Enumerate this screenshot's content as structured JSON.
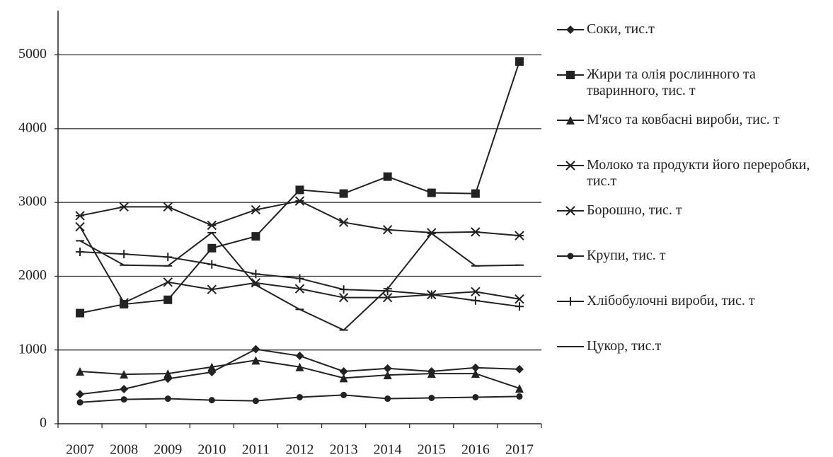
{
  "chart_data": {
    "type": "line",
    "categories": [
      "2007",
      "2008",
      "2009",
      "2010",
      "2011",
      "2012",
      "2013",
      "2014",
      "2015",
      "2016",
      "2017"
    ],
    "series": [
      {
        "name": "Соки, тис.т",
        "color": "#222222",
        "marker": "diamond",
        "values": [
          400,
          470,
          610,
          700,
          1010,
          920,
          710,
          750,
          710,
          760,
          740
        ]
      },
      {
        "name": "Жири та олія рослинного та тваринного, тис. т",
        "color": "#222222",
        "marker": "square",
        "values": [
          1500,
          1620,
          1680,
          2380,
          2540,
          3170,
          3120,
          3350,
          3130,
          3120,
          4910
        ]
      },
      {
        "name": "М'ясо та ковбасні вироби, тис. т",
        "color": "#222222",
        "marker": "triangle",
        "values": [
          710,
          670,
          680,
          770,
          860,
          770,
          620,
          660,
          680,
          680,
          480
        ]
      },
      {
        "name": "Молоко та продукти його переробки, тис.т",
        "color": "#222222",
        "marker": "x",
        "values": [
          2670,
          1640,
          1920,
          1820,
          1910,
          1830,
          1710,
          1710,
          1750,
          1790,
          1690
        ]
      },
      {
        "name": "Борошно, тис. т",
        "color": "#222222",
        "marker": "asterisk",
        "values": [
          2820,
          2940,
          2940,
          2690,
          2900,
          3020,
          2730,
          2630,
          2590,
          2600,
          2550
        ]
      },
      {
        "name": "Крупи, тис.  т",
        "color": "#222222",
        "marker": "circle",
        "values": [
          290,
          330,
          340,
          320,
          310,
          360,
          390,
          340,
          350,
          360,
          370
        ]
      },
      {
        "name": "Хлібобулочні вироби, тис. т",
        "color": "#222222",
        "marker": "plus",
        "values": [
          2330,
          2300,
          2260,
          2160,
          2030,
          1970,
          1820,
          1800,
          1750,
          1670,
          1590
        ]
      },
      {
        "name": "Цукор, тис.т",
        "color": "#222222",
        "marker": "dash",
        "values": [
          2480,
          2150,
          2140,
          2590,
          1880,
          1550,
          1270,
          1830,
          2580,
          2140,
          2150
        ]
      }
    ],
    "ylim": [
      0,
      5600
    ],
    "yticks": [
      0,
      1000,
      2000,
      3000,
      4000,
      5000
    ],
    "grid": true
  }
}
